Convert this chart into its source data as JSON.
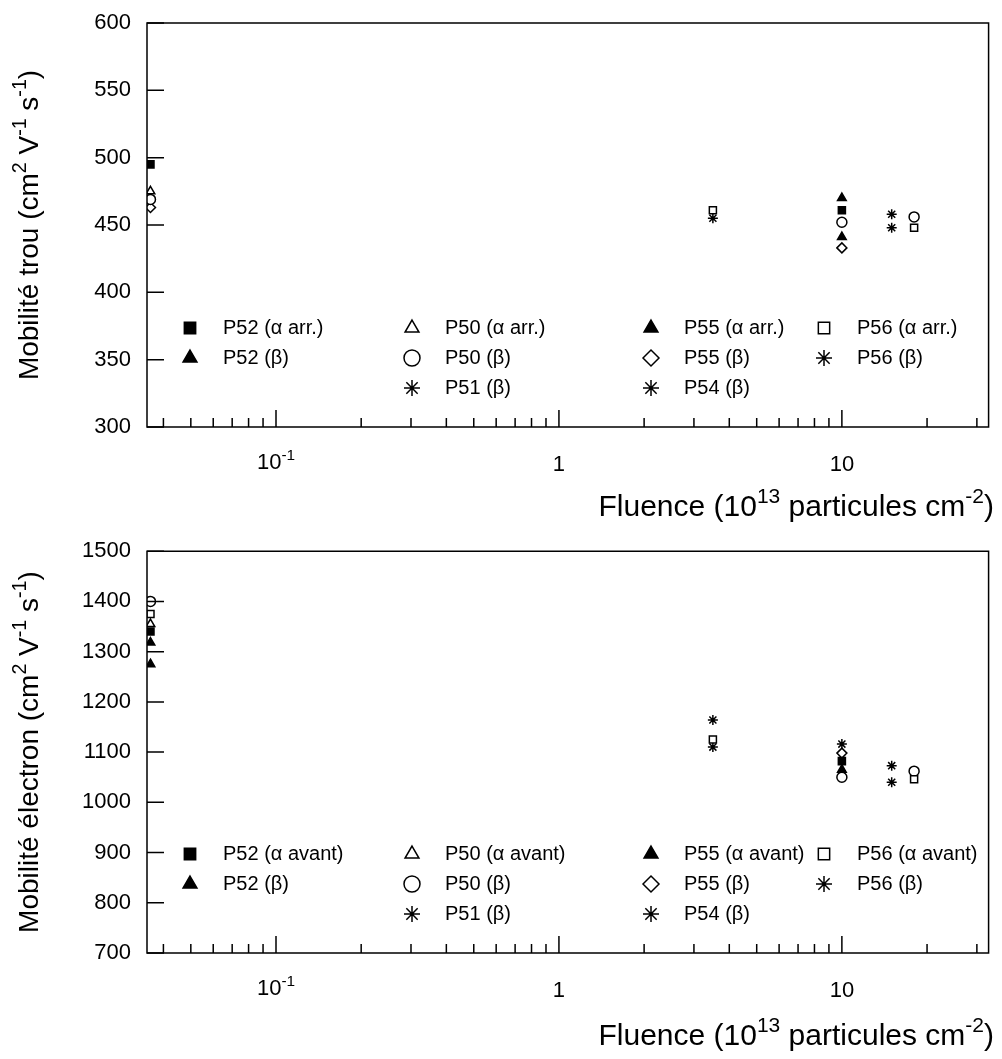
{
  "chart_data": [
    {
      "type": "scatter",
      "xlabel": "Fluence (10$^{13}$ particules cm$^{-2}$)",
      "ylabel": "Mobilité trou (cm$^{2}$ V$^{-1}$ s$^{-1}$)",
      "log": "x",
      "legend": "bottom left",
      "xlim": [
        0.035,
        33
      ],
      "xticks": [
        {
          "value": 0.04,
          "label": null
        },
        {
          "value": 0.05,
          "label": null
        },
        {
          "value": 0.06,
          "label": null
        },
        {
          "value": 0.07,
          "label": null
        },
        {
          "value": 0.08,
          "label": null
        },
        {
          "value": 0.09,
          "label": null
        },
        {
          "value": 0.1,
          "label": "10$^{-1}$"
        },
        {
          "value": 0.2,
          "label": null
        },
        {
          "value": 0.3,
          "label": null
        },
        {
          "value": 0.4,
          "label": null
        },
        {
          "value": 0.5,
          "label": null
        },
        {
          "value": 0.6,
          "label": null
        },
        {
          "value": 0.7,
          "label": null
        },
        {
          "value": 0.8,
          "label": null
        },
        {
          "value": 0.9,
          "label": null
        },
        {
          "value": 1,
          "label": "1"
        },
        {
          "value": 2,
          "label": null
        },
        {
          "value": 3,
          "label": null
        },
        {
          "value": 4,
          "label": null
        },
        {
          "value": 5,
          "label": null
        },
        {
          "value": 6,
          "label": null
        },
        {
          "value": 7,
          "label": null
        },
        {
          "value": 8,
          "label": null
        },
        {
          "value": 9,
          "label": null
        },
        {
          "value": 10,
          "label": "10"
        },
        {
          "value": 20,
          "label": null
        },
        {
          "value": 30,
          "label": null
        }
      ],
      "ylim": [
        300,
        600
      ],
      "yticks": [
        300,
        350,
        400,
        450,
        500,
        550,
        600
      ],
      "series": [
        {
          "name": "P52 (α arr.)",
          "color": "#000000",
          "marker": "square",
          "x": [
            0.036,
            10
          ],
          "values": [
            495,
            461
          ]
        },
        {
          "name": "P50 (α arr.)",
          "color": "#ffffff",
          "marker": "triangle",
          "x": [
            0.036
          ],
          "values": [
            475
          ]
        },
        {
          "name": "P55 (α arr.)",
          "color": "#000000",
          "marker": "triangle",
          "x": [
            10
          ],
          "values": [
            441
          ]
        },
        {
          "name": "P56 (α arr.)",
          "color": "#ffffff",
          "marker": "square",
          "x": [
            3.5,
            18
          ],
          "values": [
            461,
            448
          ]
        },
        {
          "name": "P52 (β)",
          "color": "#000000",
          "marker": "triangle",
          "x": [
            10
          ],
          "values": [
            470
          ]
        },
        {
          "name": "P50 (β)",
          "color": "#ffffff",
          "marker": "circle",
          "x": [
            0.036,
            10,
            18
          ],
          "values": [
            469,
            452,
            456
          ]
        },
        {
          "name": "P55 (β)",
          "color": "#ffffff",
          "marker": "diamond",
          "x": [
            0.036,
            10
          ],
          "values": [
            463,
            433
          ]
        },
        {
          "name": "P56 (β)",
          "color": "#000000",
          "marker": "cross",
          "x": [
            3.5
          ],
          "values": [
            455
          ]
        },
        {
          "name": "P51 (β)",
          "color": "#000000",
          "marker": "cross",
          "x": [
            15
          ],
          "values": [
            448
          ]
        },
        {
          "name": "P54 (β)",
          "color": "#000000",
          "marker": "cross",
          "x": [
            15
          ],
          "values": [
            458
          ]
        }
      ]
    },
    {
      "type": "scatter",
      "xlabel": "Fluence (10$^{13}$ particules cm$^{-2}$)",
      "ylabel": "Mobilité électron (cm$^{2}$ V$^{-1}$ s$^{-1}$)",
      "log": "x",
      "legend": "bottom left",
      "xlim": [
        0.035,
        33
      ],
      "xticks": [
        {
          "value": 0.04,
          "label": null
        },
        {
          "value": 0.05,
          "label": null
        },
        {
          "value": 0.06,
          "label": null
        },
        {
          "value": 0.07,
          "label": null
        },
        {
          "value": 0.08,
          "label": null
        },
        {
          "value": 0.09,
          "label": null
        },
        {
          "value": 0.1,
          "label": "10$^{-1}$"
        },
        {
          "value": 0.2,
          "label": null
        },
        {
          "value": 0.3,
          "label": null
        },
        {
          "value": 0.4,
          "label": null
        },
        {
          "value": 0.5,
          "label": null
        },
        {
          "value": 0.6,
          "label": null
        },
        {
          "value": 0.7,
          "label": null
        },
        {
          "value": 0.8,
          "label": null
        },
        {
          "value": 0.9,
          "label": null
        },
        {
          "value": 1,
          "label": "1"
        },
        {
          "value": 2,
          "label": null
        },
        {
          "value": 3,
          "label": null
        },
        {
          "value": 4,
          "label": null
        },
        {
          "value": 5,
          "label": null
        },
        {
          "value": 6,
          "label": null
        },
        {
          "value": 7,
          "label": null
        },
        {
          "value": 8,
          "label": null
        },
        {
          "value": 9,
          "label": null
        },
        {
          "value": 10,
          "label": "10"
        },
        {
          "value": 20,
          "label": null
        },
        {
          "value": 30,
          "label": null
        }
      ],
      "ylim": [
        700,
        1500
      ],
      "yticks": [
        700,
        800,
        900,
        1000,
        1100,
        1200,
        1300,
        1400,
        1500
      ],
      "series": [
        {
          "name": "P52 (α avant)",
          "color": "#000000",
          "marker": "square",
          "x": [
            0.036,
            10
          ],
          "values": [
            1340,
            1082
          ]
        },
        {
          "name": "P50 (α avant)",
          "color": "#ffffff",
          "marker": "triangle",
          "x": [
            0.036
          ],
          "values": [
            1355
          ]
        },
        {
          "name": "P55 (α avant)",
          "color": "#000000",
          "marker": "triangle",
          "x": [
            0.036,
            10
          ],
          "values": [
            1318,
            1065
          ]
        },
        {
          "name": "P56 (α avant)",
          "color": "#ffffff",
          "marker": "square",
          "x": [
            0.036,
            3.5,
            18
          ],
          "values": [
            1375,
            1125,
            1046
          ]
        },
        {
          "name": "P52 (β)",
          "color": "#000000",
          "marker": "triangle",
          "x": [
            0.036
          ],
          "values": [
            1275
          ]
        },
        {
          "name": "P50 (β)",
          "color": "#ffffff",
          "marker": "circle",
          "x": [
            0.036,
            10,
            18
          ],
          "values": [
            1400,
            1050,
            1062
          ]
        },
        {
          "name": "P55 (β)",
          "color": "#ffffff",
          "marker": "diamond",
          "x": [
            10
          ],
          "values": [
            1098
          ]
        },
        {
          "name": "P56 (β)",
          "color": "#000000",
          "marker": "cross",
          "x": [
            3.5,
            10
          ],
          "values": [
            1164,
            1116
          ]
        },
        {
          "name": "P51 (β)",
          "color": "#000000",
          "marker": "cross",
          "x": [
            3.5,
            15
          ],
          "values": [
            1110,
            1040
          ]
        },
        {
          "name": "P54 (β)",
          "color": "#000000",
          "marker": "cross",
          "x": [
            15
          ],
          "values": [
            1073
          ]
        }
      ]
    }
  ]
}
